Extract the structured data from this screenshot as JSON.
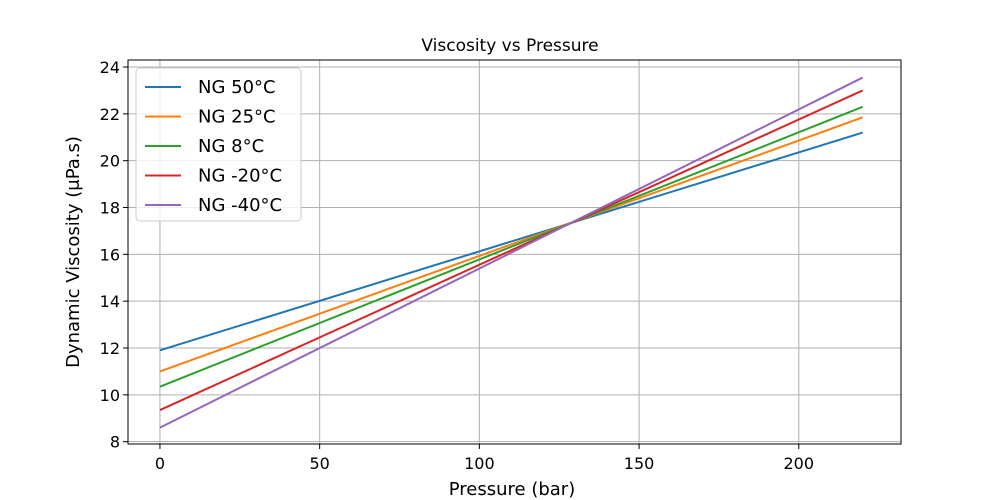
{
  "chart_data": {
    "type": "line",
    "title": "Viscosity vs Pressure",
    "xlabel": "Pressure (bar)",
    "ylabel": "Dynamic Viscosity (μPa.s)",
    "xlim": [
      -10,
      232
    ],
    "ylim": [
      7.9,
      24.3
    ],
    "xticks": [
      0,
      50,
      100,
      150,
      200
    ],
    "yticks": [
      8,
      10,
      12,
      14,
      16,
      18,
      20,
      22,
      24
    ],
    "grid": true,
    "legend_position": "top-left",
    "x": [
      0,
      220
    ],
    "series": [
      {
        "name": "NG 50°C",
        "color": "#1f77b4",
        "values": [
          11.9,
          21.2
        ]
      },
      {
        "name": "NG 25°C",
        "color": "#ff7f0e",
        "values": [
          11.0,
          21.85
        ]
      },
      {
        "name": "NG 8°C",
        "color": "#2ca02c",
        "values": [
          10.35,
          22.3
        ]
      },
      {
        "name": "NG -20°C",
        "color": "#d62728",
        "values": [
          9.35,
          23.0
        ]
      },
      {
        "name": "NG -40°C",
        "color": "#9467bd",
        "values": [
          8.6,
          23.55
        ]
      }
    ]
  }
}
